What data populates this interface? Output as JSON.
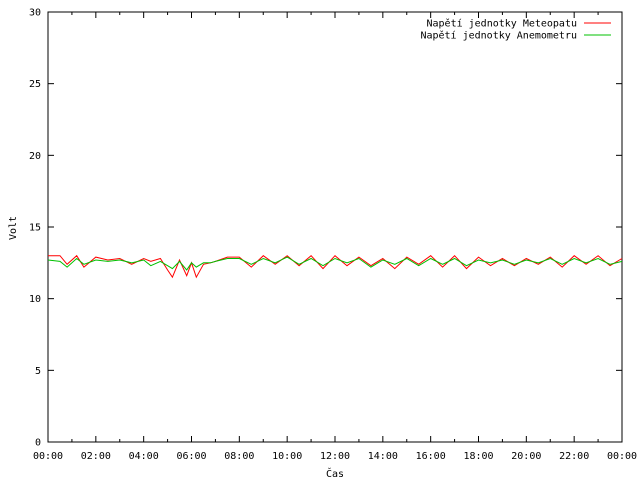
{
  "chart_data": {
    "type": "line",
    "xlabel": "Čas",
    "ylabel": "Volt",
    "ylim": [
      0,
      30
    ],
    "xlim_hours": [
      0,
      24
    ],
    "yticks": [
      0,
      5,
      10,
      15,
      20,
      25,
      30
    ],
    "xticks": [
      "00:00",
      "02:00",
      "04:00",
      "06:00",
      "08:00",
      "10:00",
      "12:00",
      "14:00",
      "16:00",
      "18:00",
      "20:00",
      "22:00",
      "00:00"
    ],
    "legend_position": "top-right",
    "grid": false,
    "series": [
      {
        "name": "Napětí jednotky Meteopatu",
        "color": "#ff0000",
        "x_hours": [
          0,
          0.5,
          0.8,
          1.2,
          1.5,
          2,
          2.5,
          3,
          3.5,
          4,
          4.3,
          4.7,
          5,
          5.2,
          5.5,
          5.8,
          6,
          6.2,
          6.5,
          6.8,
          7,
          7.5,
          8,
          8.5,
          9,
          9.5,
          10,
          10.5,
          11,
          11.5,
          12,
          12.5,
          13,
          13.5,
          14,
          14.5,
          15,
          15.5,
          16,
          16.5,
          17,
          17.5,
          18,
          18.5,
          19,
          19.5,
          20,
          20.5,
          21,
          21.5,
          22,
          22.5,
          23,
          23.5,
          24
        ],
        "y": [
          13.0,
          13.0,
          12.4,
          13.0,
          12.2,
          12.9,
          12.7,
          12.8,
          12.4,
          12.8,
          12.6,
          12.8,
          12.0,
          11.5,
          12.7,
          11.6,
          12.5,
          11.5,
          12.4,
          12.5,
          12.6,
          12.9,
          12.9,
          12.2,
          13.0,
          12.4,
          13.0,
          12.3,
          13.0,
          12.1,
          13.0,
          12.3,
          12.9,
          12.3,
          12.8,
          12.1,
          12.9,
          12.4,
          13.0,
          12.2,
          13.0,
          12.1,
          12.9,
          12.3,
          12.8,
          12.3,
          12.8,
          12.4,
          12.9,
          12.2,
          13.0,
          12.4,
          13.0,
          12.3,
          12.8
        ]
      },
      {
        "name": "Napětí jednotky Anemometru",
        "color": "#00c000",
        "x_hours": [
          0,
          0.5,
          0.8,
          1.2,
          1.5,
          2,
          2.5,
          3,
          3.5,
          4,
          4.3,
          4.7,
          5,
          5.2,
          5.5,
          5.8,
          6,
          6.2,
          6.5,
          6.8,
          7,
          7.5,
          8,
          8.5,
          9,
          9.5,
          10,
          10.5,
          11,
          11.5,
          12,
          12.5,
          13,
          13.5,
          14,
          14.5,
          15,
          15.5,
          16,
          16.5,
          17,
          17.5,
          18,
          18.5,
          19,
          19.5,
          20,
          20.5,
          21,
          21.5,
          22,
          22.5,
          23,
          23.5,
          24
        ],
        "y": [
          12.7,
          12.6,
          12.2,
          12.8,
          12.4,
          12.7,
          12.6,
          12.7,
          12.5,
          12.7,
          12.3,
          12.6,
          12.3,
          12.1,
          12.6,
          12.0,
          12.5,
          12.2,
          12.5,
          12.5,
          12.6,
          12.8,
          12.8,
          12.4,
          12.8,
          12.5,
          12.9,
          12.4,
          12.8,
          12.3,
          12.8,
          12.5,
          12.8,
          12.2,
          12.7,
          12.4,
          12.8,
          12.3,
          12.8,
          12.4,
          12.8,
          12.3,
          12.7,
          12.5,
          12.7,
          12.4,
          12.7,
          12.5,
          12.8,
          12.4,
          12.8,
          12.5,
          12.8,
          12.4,
          12.6
        ]
      }
    ]
  }
}
